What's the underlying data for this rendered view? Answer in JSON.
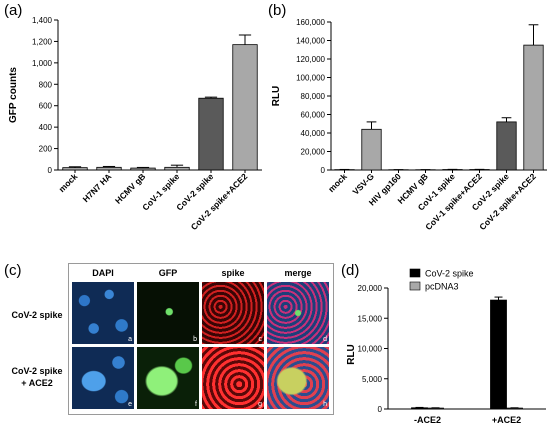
{
  "panel_labels": {
    "a": "(a)",
    "b": "(b)",
    "c": "(c)",
    "d": "(d)"
  },
  "colors": {
    "dark_bar": "#5a5a5a",
    "light_bar": "#a8a8a8",
    "black_bar": "#000000",
    "grey_bar": "#a8a8a8"
  },
  "chart_data": [
    {
      "type": "bar",
      "panel": "(a)",
      "ylabel": "GFP counts",
      "ylim": [
        0,
        1400
      ],
      "yticks": [
        0,
        200,
        400,
        600,
        800,
        1000,
        1200,
        1400
      ],
      "categories": [
        "mock",
        "H7N7 HA",
        "HCMV gB",
        "CoV-1 spike",
        "CoV-2 spike",
        "CoV-2 spike+ACE2"
      ],
      "values": [
        22,
        25,
        18,
        25,
        670,
        1170
      ],
      "errors": [
        8,
        8,
        6,
        20,
        10,
        90
      ],
      "bar_colors": [
        "#a8a8a8",
        "#a8a8a8",
        "#a8a8a8",
        "#a8a8a8",
        "#5a5a5a",
        "#a8a8a8"
      ]
    },
    {
      "type": "bar",
      "panel": "(b)",
      "ylabel": "RLU",
      "ylim": [
        0,
        160000
      ],
      "yticks": [
        0,
        20000,
        40000,
        60000,
        80000,
        100000,
        120000,
        140000,
        160000
      ],
      "ytick_labels": [
        "0",
        "20,000",
        "40,000",
        "60,000",
        "80,000",
        "100,000",
        "120,000",
        "140,000",
        "160,000"
      ],
      "categories": [
        "mock",
        "VSV-G",
        "HIV gp160",
        "HCMV gB",
        "CoV-1 spike",
        "CoV-1 spike+ACE2",
        "CoV-2 spike",
        "CoV-2 spike+ACE2"
      ],
      "values": [
        400,
        44000,
        300,
        300,
        500,
        500,
        52000,
        135000
      ],
      "errors": [
        200,
        8000,
        100,
        100,
        200,
        200,
        4500,
        22000
      ],
      "bar_colors": [
        "#a8a8a8",
        "#a8a8a8",
        "#a8a8a8",
        "#a8a8a8",
        "#a8a8a8",
        "#a8a8a8",
        "#5a5a5a",
        "#a8a8a8"
      ]
    },
    {
      "type": "bar",
      "panel": "(d)",
      "ylabel": "RLU",
      "ylim": [
        0,
        20000
      ],
      "yticks": [
        0,
        5000,
        10000,
        15000,
        20000
      ],
      "ytick_labels": [
        "0",
        "5,000",
        "10,000",
        "15,000",
        "20,000"
      ],
      "categories": [
        "-ACE2",
        "+ACE2"
      ],
      "series": [
        {
          "name": "CoV-2 spike",
          "values": [
            200,
            18000
          ],
          "errors": [
            60,
            500
          ]
        },
        {
          "name": "pcDNA3",
          "values": [
            150,
            150
          ],
          "errors": [
            50,
            50
          ]
        }
      ],
      "legend_position": "top-right"
    }
  ],
  "microscopy": {
    "columns": [
      "DAPI",
      "GFP",
      "spike",
      "merge"
    ],
    "rows": [
      "CoV-2 spike",
      "CoV-2 spike\n+ ACE2"
    ],
    "tile_letters": [
      "a",
      "b",
      "c",
      "d",
      "e",
      "f",
      "g",
      "h"
    ]
  }
}
